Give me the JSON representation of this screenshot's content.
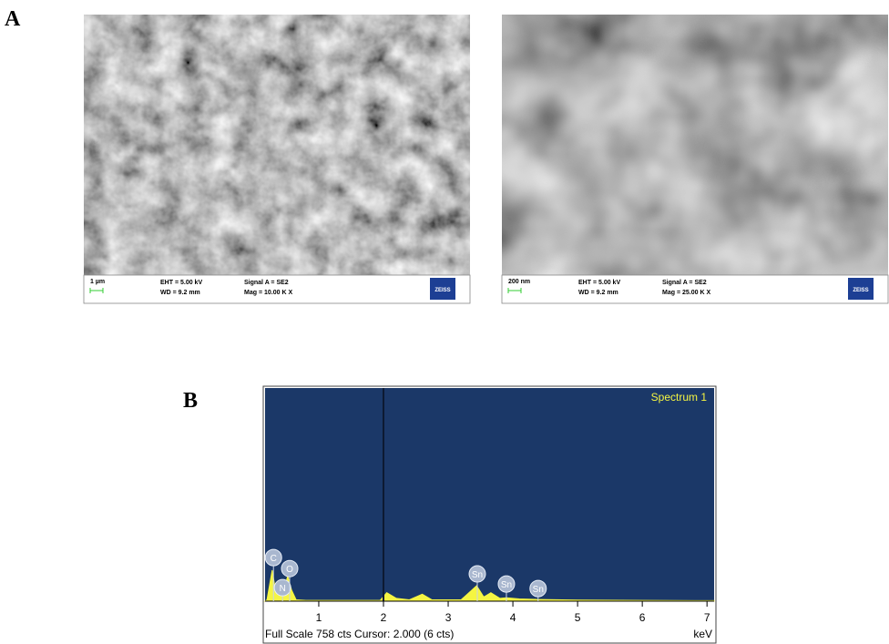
{
  "panel_a": {
    "label": "A",
    "images": [
      {
        "scale": "1 µm",
        "eht": "EHT =  5.00 kV",
        "wd": "WD =  9.2 mm",
        "signal": "Signal A = SE2",
        "mag": "Mag =   10.00 K X",
        "brand": "ZEISS"
      },
      {
        "scale": "200 nm",
        "eht": "EHT =  5.00 kV",
        "wd": "WD =  9.2 mm",
        "signal": "Signal A = SE2",
        "mag": "Mag =   25.00 K X",
        "brand": "ZEISS"
      }
    ]
  },
  "panel_b": {
    "label": "B"
  },
  "chart_data": {
    "type": "line",
    "title": "Spectrum 1",
    "x_label": "keV",
    "footer": "Full Scale 758 cts Cursor: 2.000  (6 cts)",
    "cursor_x": 2,
    "x": [
      0.17,
      0.2,
      0.28,
      0.33,
      0.39,
      0.45,
      0.52,
      0.58,
      0.65,
      0.8,
      1.5,
      1.95,
      2.05,
      2.2,
      2.4,
      2.6,
      2.75,
      3.2,
      3.44,
      3.55,
      3.66,
      3.8,
      3.9,
      4.1,
      4.4,
      5,
      6,
      7.11
    ],
    "values": [
      0,
      5,
      110,
      40,
      60,
      30,
      90,
      40,
      5,
      3,
      3,
      3,
      30,
      10,
      5,
      25,
      5,
      5,
      55,
      15,
      30,
      10,
      12,
      8,
      6,
      4,
      3,
      2
    ],
    "color": "#f5f542",
    "xlim": [
      0.17,
      7.11
    ],
    "ylim": [
      0,
      758
    ],
    "xticks": [
      1,
      2,
      3,
      4,
      5,
      6,
      7
    ],
    "annotations": [
      {
        "label": "C",
        "x": 0.3,
        "y": 155
      },
      {
        "label": "N",
        "x": 0.44,
        "y": 48
      },
      {
        "label": "O",
        "x": 0.55,
        "y": 116
      },
      {
        "label": "Sn",
        "x": 3.45,
        "y": 97
      },
      {
        "label": "Sn",
        "x": 3.9,
        "y": 61
      },
      {
        "label": "Sn",
        "x": 4.39,
        "y": 45
      }
    ]
  }
}
